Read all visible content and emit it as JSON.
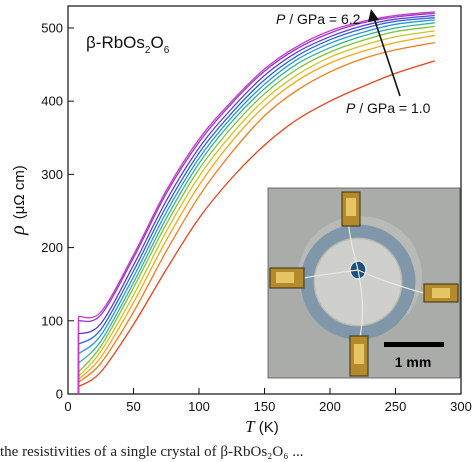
{
  "chart_data": {
    "type": "line",
    "title": "",
    "compound_label": {
      "main": "β-RbOs",
      "sub1": "2",
      "mid": "O",
      "sub2": "6"
    },
    "xlabel": {
      "symbol": "T",
      "unit": " (K)"
    },
    "ylabel": {
      "symbol": "ρ",
      "unit": "(μΩ cm)"
    },
    "xlim": [
      0,
      300
    ],
    "ylim": [
      0,
      530
    ],
    "xticks": [
      0,
      50,
      100,
      150,
      200,
      250,
      300
    ],
    "yticks": [
      0,
      100,
      200,
      300,
      400,
      500
    ],
    "annotations": {
      "high_pressure": {
        "var": "P",
        "text": " / GPa = 6.2"
      },
      "low_pressure": {
        "var": "P",
        "text": " / GPa = 1.0"
      }
    },
    "series": [
      {
        "color": "#e8431a",
        "values": [
          [
            8,
            10
          ],
          [
            25,
            30
          ],
          [
            50,
            95
          ],
          [
            75,
            170
          ],
          [
            100,
            240
          ],
          [
            125,
            295
          ],
          [
            150,
            340
          ],
          [
            175,
            375
          ],
          [
            200,
            400
          ],
          [
            225,
            420
          ],
          [
            250,
            438
          ],
          [
            280,
            455
          ]
        ]
      },
      {
        "color": "#f07a1a",
        "values": [
          [
            8,
            16
          ],
          [
            25,
            42
          ],
          [
            50,
            112
          ],
          [
            75,
            195
          ],
          [
            100,
            270
          ],
          [
            125,
            330
          ],
          [
            150,
            380
          ],
          [
            175,
            415
          ],
          [
            200,
            440
          ],
          [
            225,
            458
          ],
          [
            250,
            470
          ],
          [
            280,
            480
          ]
        ]
      },
      {
        "color": "#f3a81c",
        "values": [
          [
            8,
            20
          ],
          [
            25,
            50
          ],
          [
            50,
            125
          ],
          [
            75,
            210
          ],
          [
            100,
            285
          ],
          [
            125,
            345
          ],
          [
            150,
            393
          ],
          [
            175,
            428
          ],
          [
            200,
            452
          ],
          [
            225,
            468
          ],
          [
            250,
            480
          ],
          [
            280,
            490
          ]
        ]
      },
      {
        "color": "#cfc324",
        "values": [
          [
            8,
            24
          ],
          [
            25,
            58
          ],
          [
            50,
            135
          ],
          [
            75,
            222
          ],
          [
            100,
            297
          ],
          [
            125,
            355
          ],
          [
            150,
            402
          ],
          [
            175,
            436
          ],
          [
            200,
            460
          ],
          [
            225,
            476
          ],
          [
            250,
            488
          ],
          [
            280,
            496
          ]
        ]
      },
      {
        "color": "#83c03a",
        "values": [
          [
            8,
            30
          ],
          [
            25,
            65
          ],
          [
            50,
            145
          ],
          [
            75,
            232
          ],
          [
            100,
            307
          ],
          [
            125,
            364
          ],
          [
            150,
            410
          ],
          [
            175,
            444
          ],
          [
            200,
            467
          ],
          [
            225,
            483
          ],
          [
            250,
            495
          ],
          [
            280,
            502
          ]
        ]
      },
      {
        "color": "#2fb59a",
        "values": [
          [
            8,
            42
          ],
          [
            25,
            72
          ],
          [
            50,
            152
          ],
          [
            75,
            240
          ],
          [
            100,
            315
          ],
          [
            125,
            372
          ],
          [
            150,
            417
          ],
          [
            175,
            451
          ],
          [
            200,
            473
          ],
          [
            225,
            489
          ],
          [
            250,
            500
          ],
          [
            280,
            507
          ]
        ]
      },
      {
        "color": "#2a96d8",
        "values": [
          [
            8,
            55
          ],
          [
            25,
            80
          ],
          [
            50,
            160
          ],
          [
            75,
            248
          ],
          [
            100,
            322
          ],
          [
            125,
            378
          ],
          [
            150,
            423
          ],
          [
            175,
            457
          ],
          [
            200,
            479
          ],
          [
            225,
            494
          ],
          [
            250,
            505
          ],
          [
            280,
            511
          ]
        ]
      },
      {
        "color": "#2a62d6",
        "values": [
          [
            8,
            68
          ],
          [
            25,
            88
          ],
          [
            50,
            168
          ],
          [
            75,
            256
          ],
          [
            100,
            329
          ],
          [
            125,
            384
          ],
          [
            150,
            429
          ],
          [
            175,
            462
          ],
          [
            200,
            484
          ],
          [
            225,
            499
          ],
          [
            250,
            509
          ],
          [
            280,
            514
          ]
        ]
      },
      {
        "color": "#5a3fd0",
        "values": [
          [
            8,
            82
          ],
          [
            25,
            96
          ],
          [
            50,
            176
          ],
          [
            75,
            264
          ],
          [
            100,
            336
          ],
          [
            125,
            390
          ],
          [
            150,
            435
          ],
          [
            175,
            467
          ],
          [
            200,
            488
          ],
          [
            225,
            503
          ],
          [
            250,
            512
          ],
          [
            280,
            517
          ]
        ]
      },
      {
        "color": "#9a35cc",
        "values": [
          [
            8,
            100
          ],
          [
            25,
            108
          ],
          [
            50,
            186
          ],
          [
            75,
            274
          ],
          [
            100,
            344
          ],
          [
            125,
            397
          ],
          [
            150,
            441
          ],
          [
            175,
            472
          ],
          [
            200,
            493
          ],
          [
            225,
            507
          ],
          [
            250,
            515
          ],
          [
            280,
            520
          ]
        ]
      },
      {
        "color": "#c43ac9",
        "values": [
          [
            8,
            106
          ],
          [
            25,
            112
          ],
          [
            50,
            190
          ],
          [
            75,
            278
          ],
          [
            100,
            348
          ],
          [
            125,
            400
          ],
          [
            150,
            444
          ],
          [
            175,
            475
          ],
          [
            200,
            496
          ],
          [
            225,
            509
          ],
          [
            250,
            517
          ],
          [
            280,
            522
          ]
        ]
      }
    ],
    "inset": {
      "kind": "photo",
      "scale_bar": "1 mm"
    }
  },
  "caption": "the resistivities of a single crystal of β-RbOs₂O₆ ..."
}
